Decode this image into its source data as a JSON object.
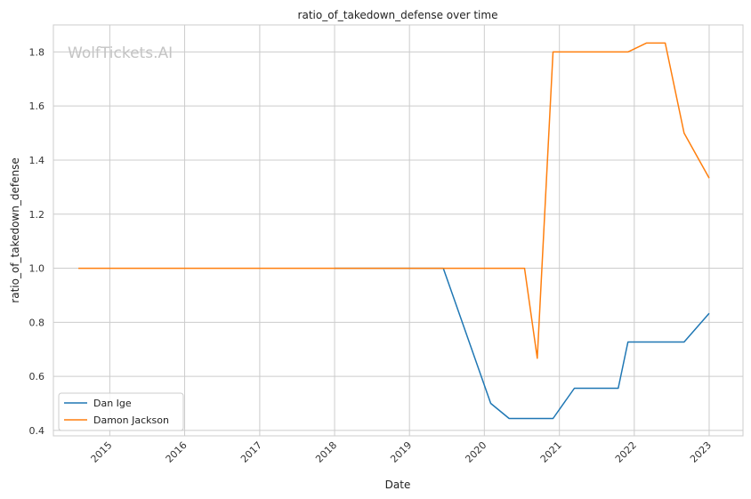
{
  "chart_data": {
    "type": "line",
    "title": "ratio_of_takedown_defense over time",
    "xlabel": "Date",
    "ylabel": "ratio_of_takedown_defense",
    "watermark": "WolfTickets.AI",
    "x_ticks": [
      "2015",
      "2016",
      "2017",
      "2018",
      "2019",
      "2020",
      "2021",
      "2022",
      "2023"
    ],
    "y_ticks": [
      "0.4",
      "0.6",
      "0.8",
      "1.0",
      "1.2",
      "1.4",
      "1.6",
      "1.8"
    ],
    "xlim": [
      "2014-04-01",
      "2023-06-15"
    ],
    "ylim": [
      0.38,
      1.9
    ],
    "grid": true,
    "legend_position": "lower-left",
    "series": [
      {
        "name": "Dan Ige",
        "color": "#1f77b4",
        "points": [
          {
            "x": "2018-01-01",
            "y": 1.0
          },
          {
            "x": "2019-06-15",
            "y": 1.0
          },
          {
            "x": "2020-02-01",
            "y": 0.5
          },
          {
            "x": "2020-05-01",
            "y": 0.444
          },
          {
            "x": "2020-12-01",
            "y": 0.444
          },
          {
            "x": "2021-03-15",
            "y": 0.556
          },
          {
            "x": "2021-10-15",
            "y": 0.556
          },
          {
            "x": "2021-12-01",
            "y": 0.727
          },
          {
            "x": "2022-09-01",
            "y": 0.727
          },
          {
            "x": "2023-01-01",
            "y": 0.833
          }
        ]
      },
      {
        "name": "Damon Jackson",
        "color": "#ff7f0e",
        "points": [
          {
            "x": "2014-08-01",
            "y": 1.0
          },
          {
            "x": "2020-07-15",
            "y": 1.0
          },
          {
            "x": "2020-09-15",
            "y": 0.667
          },
          {
            "x": "2020-12-01",
            "y": 1.8
          },
          {
            "x": "2021-12-01",
            "y": 1.8
          },
          {
            "x": "2022-03-01",
            "y": 1.833
          },
          {
            "x": "2022-06-01",
            "y": 1.833
          },
          {
            "x": "2022-09-01",
            "y": 1.5
          },
          {
            "x": "2023-01-01",
            "y": 1.333
          }
        ]
      }
    ]
  }
}
